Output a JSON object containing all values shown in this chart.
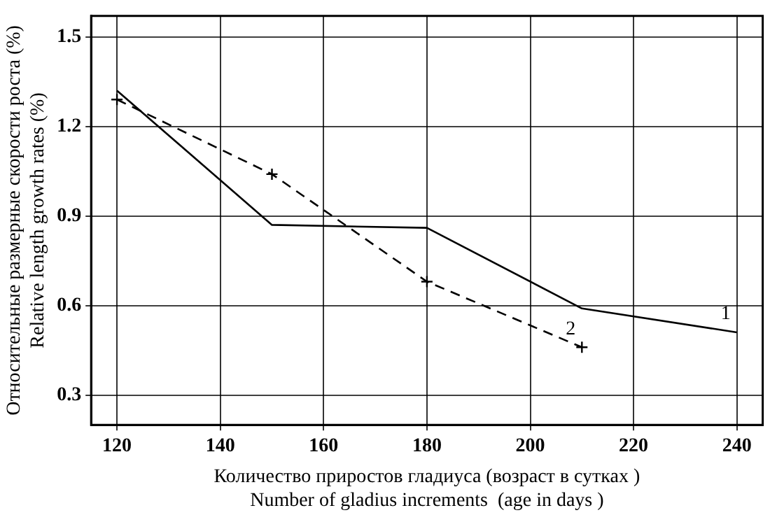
{
  "chart_data": {
    "type": "line",
    "xlabel": "Количество приростов гладиуса (возраст в сутках )\nNumber of gladius increments  (age in days )",
    "ylabel": "Относительные размерные скорости роста (%)\nRelative length growth rates (%)",
    "xlim": [
      115,
      245
    ],
    "xticks": [
      120,
      140,
      160,
      180,
      200,
      220,
      240
    ],
    "ylim": [
      0.2,
      1.57
    ],
    "yticks": [
      0.3,
      0.6,
      0.9,
      1.2,
      1.5
    ],
    "grid": true,
    "legend": false,
    "series": [
      {
        "name": "1",
        "color": "#000000",
        "x": [
          120,
          150,
          180,
          210,
          240
        ],
        "values": [
          1.32,
          0.87,
          0.86,
          0.59,
          0.51
        ],
        "line_style": "solid",
        "marker": "none"
      },
      {
        "name": "2",
        "color": "#000000",
        "x": [
          120,
          150,
          180,
          210
        ],
        "values": [
          1.29,
          1.04,
          0.68,
          0.46
        ],
        "line_style": "dashed",
        "marker": "cross"
      }
    ]
  }
}
